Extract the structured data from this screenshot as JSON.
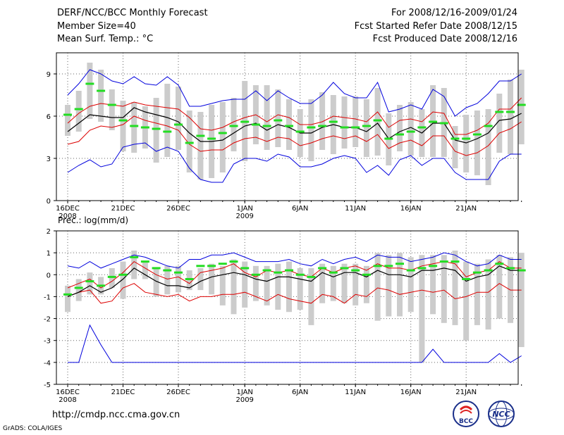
{
  "header": {
    "title": "DERF/NCC/BCC Monthly Forecast",
    "member_size": "Member Size=40",
    "variable": "Mean Surf. Temp.: °C",
    "period": "For 2008/12/16-2009/01/24",
    "started": "Fcst Started Refer Date 2008/12/15",
    "produced": "Fcst Produced Date 2008/12/16"
  },
  "footer": {
    "url": "http://cmdp.ncc.cma.gov.cn",
    "grads": "GrADS: COLA/IGES",
    "logo_bcc": "BCC",
    "logo_ncc": "NCC"
  },
  "colors": {
    "max": "#0000dd",
    "pct": "#dd0000",
    "mean": "#000000",
    "obs": "#22dd22",
    "box": "#cccccc"
  },
  "chart_data": [
    {
      "type": "line",
      "title": "Mean Surf. Temp.: °C",
      "xlabel": "",
      "ylabel": "",
      "ylim": [
        0,
        10.5
      ],
      "yticks": [
        0,
        3,
        6,
        9
      ],
      "grid": true,
      "x_days": 40,
      "xtick_days": [
        0,
        5,
        10,
        16,
        21,
        26,
        31,
        36
      ],
      "xtick_labels": [
        [
          "16DEC",
          "2008"
        ],
        [
          "21DEC",
          ""
        ],
        [
          "26DEC",
          ""
        ],
        [
          "1JAN",
          "2009"
        ],
        [
          "6JAN",
          ""
        ],
        [
          "11JAN",
          ""
        ],
        [
          "16JAN",
          ""
        ],
        [
          "21JAN",
          ""
        ]
      ],
      "series": [
        {
          "name": "max",
          "values": [
            2.0,
            2.5,
            2.9,
            2.4,
            2.6,
            3.8,
            4.0,
            4.1,
            3.5,
            3.8,
            3.5,
            2.3,
            1.5,
            1.3,
            1.3,
            2.6,
            3.0,
            3.0,
            2.8,
            3.3,
            3.1,
            2.4,
            2.4,
            2.6,
            3.0,
            3.2,
            3.0,
            2.0,
            2.5,
            1.8,
            2.9,
            3.2,
            2.5,
            3.0,
            3.0,
            2.0,
            1.5,
            1.5,
            1.5,
            2.8,
            3.3,
            3.3
          ]
        },
        {
          "name": "min",
          "values": [
            7.5,
            8.3,
            9.3,
            9.0,
            8.5,
            8.3,
            8.8,
            8.3,
            8.2,
            8.8,
            8.2,
            6.7,
            6.7,
            6.9,
            7.1,
            7.2,
            7.2,
            7.8,
            7.1,
            7.8,
            7.3,
            6.9,
            6.9,
            7.5,
            8.4,
            7.6,
            7.3,
            7.3,
            8.4,
            6.3,
            6.5,
            6.8,
            6.5,
            7.9,
            7.4,
            6.0,
            6.6,
            6.9,
            7.6,
            8.5,
            8.5,
            9.0
          ]
        },
        {
          "name": "p90",
          "values": [
            5.5,
            6.2,
            6.7,
            6.9,
            6.8,
            6.7,
            7.0,
            6.8,
            6.7,
            6.6,
            6.5,
            5.9,
            5.1,
            5.0,
            5.2,
            5.6,
            5.9,
            6.1,
            5.6,
            6.1,
            5.9,
            5.4,
            5.4,
            5.6,
            6.0,
            5.9,
            5.8,
            5.6,
            6.3,
            5.2,
            5.7,
            5.8,
            5.6,
            6.3,
            6.2,
            4.7,
            4.7,
            5.0,
            5.5,
            6.5,
            6.5,
            7.3
          ]
        },
        {
          "name": "p10",
          "values": [
            4.0,
            4.2,
            5.0,
            5.3,
            5.2,
            5.4,
            6.0,
            5.7,
            5.5,
            5.3,
            5.0,
            4.0,
            3.5,
            3.6,
            3.6,
            4.1,
            4.4,
            4.5,
            4.2,
            4.5,
            4.4,
            3.9,
            4.1,
            4.4,
            4.6,
            4.4,
            4.6,
            4.2,
            4.7,
            3.7,
            4.1,
            4.3,
            3.9,
            4.6,
            4.6,
            3.5,
            3.2,
            3.4,
            3.9,
            4.8,
            5.1,
            5.6
          ]
        },
        {
          "name": "mean",
          "values": [
            4.9,
            5.5,
            6.1,
            6.0,
            5.9,
            5.9,
            6.6,
            6.3,
            6.1,
            5.9,
            5.6,
            4.8,
            4.2,
            4.2,
            4.3,
            4.8,
            5.3,
            5.5,
            5.0,
            5.4,
            5.2,
            4.8,
            4.8,
            5.2,
            5.4,
            5.2,
            5.2,
            4.9,
            5.5,
            4.4,
            4.9,
            5.2,
            4.8,
            5.5,
            5.5,
            4.3,
            4.1,
            4.4,
            4.8,
            5.7,
            5.8,
            6.2
          ]
        },
        {
          "name": "obs",
          "values": [
            6.1,
            6.5,
            8.3,
            7.8,
            6.8,
            5.7,
            5.3,
            5.2,
            5.1,
            4.9,
            5.4,
            4.1,
            4.6,
            4.4,
            4.8,
            5.3,
            5.6,
            5.4,
            5.3,
            5.7,
            5.3,
            4.9,
            5.2,
            5.3,
            5.6,
            5.2,
            5.2,
            5.3,
            5.7,
            4.4,
            4.7,
            4.9,
            5.2,
            5.6,
            5.5,
            4.4,
            4.4,
            4.7,
            5.3,
            6.3,
            6.3,
            6.8
          ]
        }
      ],
      "boxes": {
        "low": [
          4.6,
          4.9,
          5.8,
          5.6,
          5.0,
          3.5,
          3.4,
          3.7,
          2.7,
          3.1,
          3.6,
          2.0,
          1.5,
          1.6,
          2.0,
          3.5,
          2.8,
          4.0,
          3.6,
          3.8,
          3.6,
          3.1,
          2.8,
          3.6,
          3.3,
          3.7,
          3.8,
          3.1,
          3.2,
          2.5,
          3.5,
          3.2,
          3.1,
          3.1,
          3.1,
          2.3,
          2.0,
          1.8,
          1.1,
          3.4,
          3.3,
          4.0
        ],
        "high": [
          6.8,
          7.8,
          9.8,
          9.3,
          7.9,
          7.1,
          7.0,
          6.7,
          7.3,
          8.3,
          8.1,
          6.4,
          6.3,
          6.8,
          7.0,
          7.3,
          8.5,
          8.2,
          8.2,
          7.9,
          7.2,
          6.5,
          7.2,
          7.7,
          7.5,
          7.4,
          7.4,
          7.2,
          8.0,
          6.2,
          6.8,
          7.0,
          6.5,
          8.2,
          8.0,
          5.3,
          6.1,
          6.4,
          6.5,
          7.6,
          8.6,
          9.3
        ]
      }
    },
    {
      "type": "line",
      "title": "Prec.: log(mm/d)",
      "xlabel": "",
      "ylabel": "",
      "ylim": [
        -5,
        2
      ],
      "yticks": [
        -5,
        -4,
        -3,
        -2,
        -1,
        0,
        1,
        2
      ],
      "grid": true,
      "x_days": 40,
      "xtick_days": [
        0,
        5,
        10,
        16,
        21,
        26,
        31,
        36
      ],
      "xtick_labels": [
        [
          "16DEC",
          "2008"
        ],
        [
          "21DEC",
          ""
        ],
        [
          "26DEC",
          ""
        ],
        [
          "1JAN",
          "2009"
        ],
        [
          "6JAN",
          ""
        ],
        [
          "11JAN",
          ""
        ],
        [
          "16JAN",
          ""
        ],
        [
          "21JAN",
          ""
        ]
      ],
      "series": [
        {
          "name": "max",
          "values": [
            0.4,
            0.3,
            0.6,
            0.3,
            0.5,
            0.7,
            0.9,
            0.8,
            0.6,
            0.4,
            0.3,
            0.7,
            0.7,
            0.9,
            0.9,
            1.0,
            0.8,
            0.6,
            0.6,
            0.6,
            0.7,
            0.5,
            0.4,
            0.7,
            0.5,
            0.7,
            0.8,
            0.6,
            0.9,
            0.8,
            0.8,
            0.6,
            0.7,
            0.8,
            1.0,
            0.9,
            0.6,
            0.4,
            0.5,
            0.9,
            0.7,
            0.7
          ]
        },
        {
          "name": "min",
          "values": [
            -4.0,
            -4.0,
            -2.3,
            -3.2,
            -4.0,
            -4.0,
            -4.0,
            -4.0,
            -4.0,
            -4.0,
            -4.0,
            -4.0,
            -4.0,
            -4.0,
            -4.0,
            -4.0,
            -4.0,
            -4.0,
            -4.0,
            -4.0,
            -4.0,
            -4.0,
            -4.0,
            -4.0,
            -4.0,
            -4.0,
            -4.0,
            -4.0,
            -4.0,
            -4.0,
            -4.0,
            -4.0,
            -4.0,
            -3.4,
            -4.0,
            -4.0,
            -4.0,
            -4.0,
            -4.0,
            -3.6,
            -4.0,
            -3.7
          ]
        },
        {
          "name": "p90",
          "values": [
            -0.6,
            -0.4,
            -0.2,
            -0.6,
            -0.3,
            0.1,
            0.6,
            0.3,
            0.0,
            -0.2,
            -0.1,
            -0.4,
            0.1,
            0.2,
            0.3,
            0.5,
            0.1,
            -0.1,
            0.2,
            0.1,
            0.2,
            0.0,
            -0.1,
            0.3,
            0.1,
            0.3,
            0.4,
            0.2,
            0.5,
            0.3,
            0.3,
            0.2,
            0.4,
            0.5,
            0.6,
            0.5,
            -0.1,
            0.1,
            0.2,
            0.6,
            0.3,
            0.3
          ]
        },
        {
          "name": "p10",
          "values": [
            -1.0,
            -0.8,
            -0.7,
            -1.3,
            -1.2,
            -0.6,
            -0.4,
            -0.8,
            -0.9,
            -1.0,
            -0.9,
            -1.2,
            -1.0,
            -1.0,
            -0.9,
            -0.9,
            -0.8,
            -1.0,
            -1.2,
            -0.9,
            -1.1,
            -1.2,
            -1.3,
            -0.9,
            -1.0,
            -1.3,
            -0.9,
            -1.0,
            -0.6,
            -0.7,
            -0.9,
            -0.8,
            -0.7,
            -0.8,
            -0.7,
            -1.1,
            -1.0,
            -0.8,
            -0.8,
            -0.4,
            -0.7,
            -0.7
          ]
        },
        {
          "name": "mean",
          "values": [
            -1.0,
            -0.8,
            -0.5,
            -0.8,
            -0.6,
            -0.2,
            0.3,
            0.0,
            -0.3,
            -0.5,
            -0.5,
            -0.6,
            -0.3,
            -0.1,
            0.0,
            0.1,
            0.0,
            -0.2,
            -0.3,
            -0.1,
            -0.1,
            -0.2,
            -0.3,
            0.1,
            -0.1,
            0.1,
            0.1,
            -0.1,
            0.2,
            0.0,
            0.0,
            -0.1,
            0.2,
            0.2,
            0.3,
            0.2,
            -0.3,
            -0.1,
            0.0,
            0.4,
            0.2,
            0.2
          ]
        },
        {
          "name": "obs",
          "values": [
            -0.9,
            -0.6,
            -0.3,
            -0.5,
            -0.1,
            0.0,
            0.8,
            0.6,
            0.3,
            0.2,
            0.1,
            -0.2,
            0.4,
            0.4,
            0.5,
            0.6,
            0.3,
            0.0,
            0.2,
            0.1,
            0.2,
            0.0,
            -0.1,
            0.3,
            0.1,
            0.3,
            0.2,
            0.0,
            0.4,
            0.4,
            0.5,
            0.2,
            0.3,
            0.4,
            0.6,
            0.6,
            -0.2,
            0.1,
            0.2,
            0.5,
            0.3,
            0.2
          ]
        }
      ],
      "boxes": {
        "low": [
          -1.7,
          -1.2,
          -0.9,
          -0.9,
          -0.6,
          -1.1,
          -0.2,
          -0.2,
          -1.0,
          -0.9,
          -0.8,
          -0.7,
          -0.7,
          -0.9,
          -1.4,
          -1.8,
          -1.5,
          -1.2,
          -1.4,
          -1.6,
          -1.7,
          -1.6,
          -2.3,
          -1.3,
          -1.2,
          -1.3,
          -1.4,
          -1.3,
          -2.1,
          -1.9,
          -1.9,
          -1.7,
          -4.0,
          -1.8,
          -2.2,
          -2.3,
          -3.0,
          -2.3,
          -2.5,
          -2.0,
          -2.2,
          -3.3
        ],
        "high": [
          -0.5,
          -0.2,
          0.1,
          -0.1,
          0.3,
          0.6,
          1.1,
          0.6,
          0.3,
          0.4,
          0.4,
          0.2,
          0.3,
          0.5,
          0.4,
          0.7,
          0.6,
          0.4,
          0.4,
          0.5,
          0.6,
          0.3,
          0.3,
          0.5,
          0.4,
          0.5,
          0.5,
          0.4,
          1.0,
          0.9,
          1.0,
          0.8,
          0.9,
          0.9,
          0.9,
          1.1,
          0.6,
          0.5,
          0.7,
          0.9,
          0.8,
          1.0
        ]
      }
    }
  ]
}
